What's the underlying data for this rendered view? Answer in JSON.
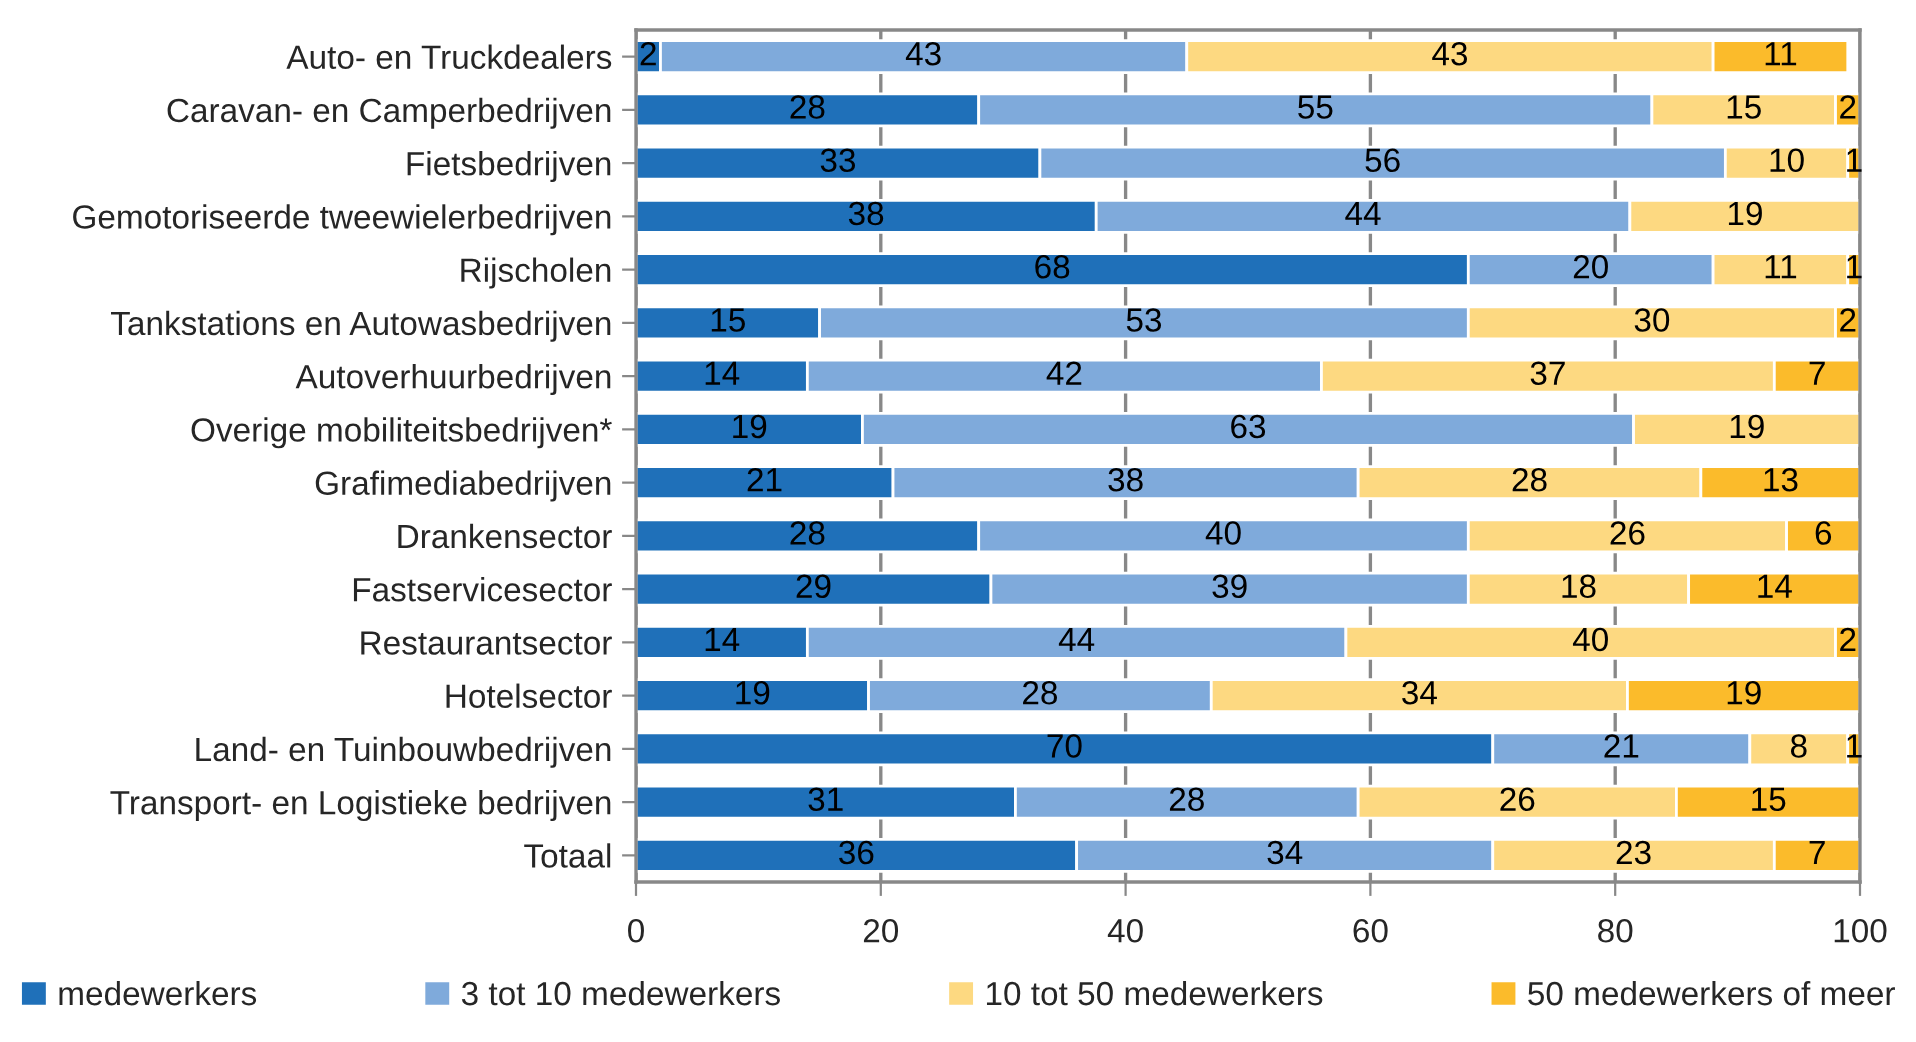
{
  "chart_data": {
    "type": "bar",
    "orientation": "horizontal",
    "stacked": true,
    "categories": [
      "Auto- en Truckdealers",
      "Caravan- en Camperbedrijven",
      "Fietsbedrijven",
      "Gemotoriseerde tweewielerbedrijven",
      "Rijscholen",
      "Tankstations en Autowasbedrijven",
      "Autoverhuurbedrijven",
      "Overige mobiliteitsbedrijven*",
      "Grafimediabedrijven",
      "Drankensector",
      "Fastservicesector",
      "Restaurantsector",
      "Hotelsector",
      "Land- en Tuinbouwbedrijven",
      "Transport- en Logistieke bedrijven",
      "Totaal"
    ],
    "series": [
      {
        "name": "medewerkers",
        "color": "#1f70b9",
        "values": [
          2,
          28,
          33,
          37.6,
          68,
          15,
          14,
          18.5,
          21,
          28,
          29,
          14,
          19,
          70,
          31,
          36
        ],
        "value_labels": [
          "2",
          "28",
          "33",
          "38",
          "68",
          "15",
          "14",
          "19",
          "21",
          "28",
          "29",
          "14",
          "19",
          "70",
          "31",
          "36"
        ]
      },
      {
        "name": "3 tot 10 medewerkers",
        "color": "#7faadb",
        "values": [
          43,
          55,
          56,
          43.6,
          20,
          53,
          42,
          63,
          38,
          40,
          39,
          44,
          28,
          21,
          28,
          34
        ],
        "value_labels": [
          "43",
          "55",
          "56",
          "44",
          "20",
          "53",
          "42",
          "63",
          "38",
          "40",
          "39",
          "44",
          "28",
          "21",
          "28",
          "34"
        ]
      },
      {
        "name": "10 tot 50 medewerkers",
        "color": "#fdd981",
        "values": [
          43,
          15,
          10,
          18.8,
          11,
          30,
          37,
          18.5,
          28,
          26,
          18,
          40,
          34,
          8,
          26,
          23
        ],
        "value_labels": [
          "43",
          "15",
          "10",
          "19",
          "11",
          "30",
          "37",
          "19",
          "28",
          "26",
          "18",
          "40",
          "34",
          "8",
          "26",
          "23"
        ]
      },
      {
        "name": "50 medewerkers of meer",
        "color": "#fbbb2b",
        "values": [
          11,
          2,
          1,
          null,
          1,
          2,
          7,
          null,
          13,
          6,
          14,
          2,
          19,
          1,
          15,
          7
        ]
      }
    ],
    "xlim": [
      0,
      100
    ],
    "xticks": [
      0,
      20,
      40,
      60,
      80,
      100
    ],
    "grid": "x",
    "legend": "bottom",
    "data_labels": true
  }
}
